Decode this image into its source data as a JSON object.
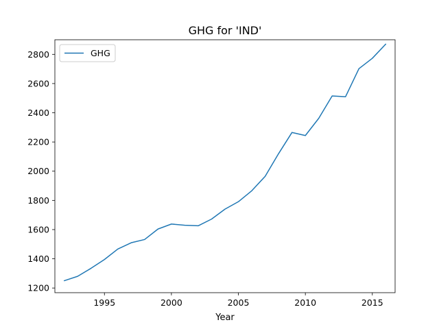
{
  "colors": {
    "series": "#1f77b4",
    "axes": "#000000",
    "legend_border": "#cccccc",
    "background": "#ffffff"
  },
  "chart_data": {
    "type": "line",
    "title": "GHG for 'IND'",
    "xlabel": "Year",
    "ylabel": "",
    "xlim": [
      1991.3,
      2016.7
    ],
    "ylim": [
      1168,
      2900
    ],
    "x_ticks": [
      1995,
      2000,
      2005,
      2010,
      2015
    ],
    "y_ticks": [
      1200,
      1400,
      1600,
      1800,
      2000,
      2200,
      2400,
      2600,
      2800
    ],
    "grid": false,
    "legend": {
      "position": "upper left",
      "entries": [
        "GHG"
      ]
    },
    "x": [
      1992,
      1993,
      1994,
      1995,
      1996,
      1997,
      1998,
      1999,
      2000,
      2001,
      2002,
      2003,
      2004,
      2005,
      2006,
      2007,
      2008,
      2009,
      2010,
      2011,
      2012,
      2013,
      2014,
      2015,
      2016
    ],
    "series": [
      {
        "name": "GHG",
        "values": [
          1250,
          1280,
          1335,
          1395,
          1467,
          1510,
          1532,
          1604,
          1638,
          1630,
          1626,
          1672,
          1740,
          1791,
          1866,
          1965,
          2120,
          2265,
          2244,
          2362,
          2515,
          2510,
          2702,
          2773,
          2870
        ]
      }
    ]
  }
}
